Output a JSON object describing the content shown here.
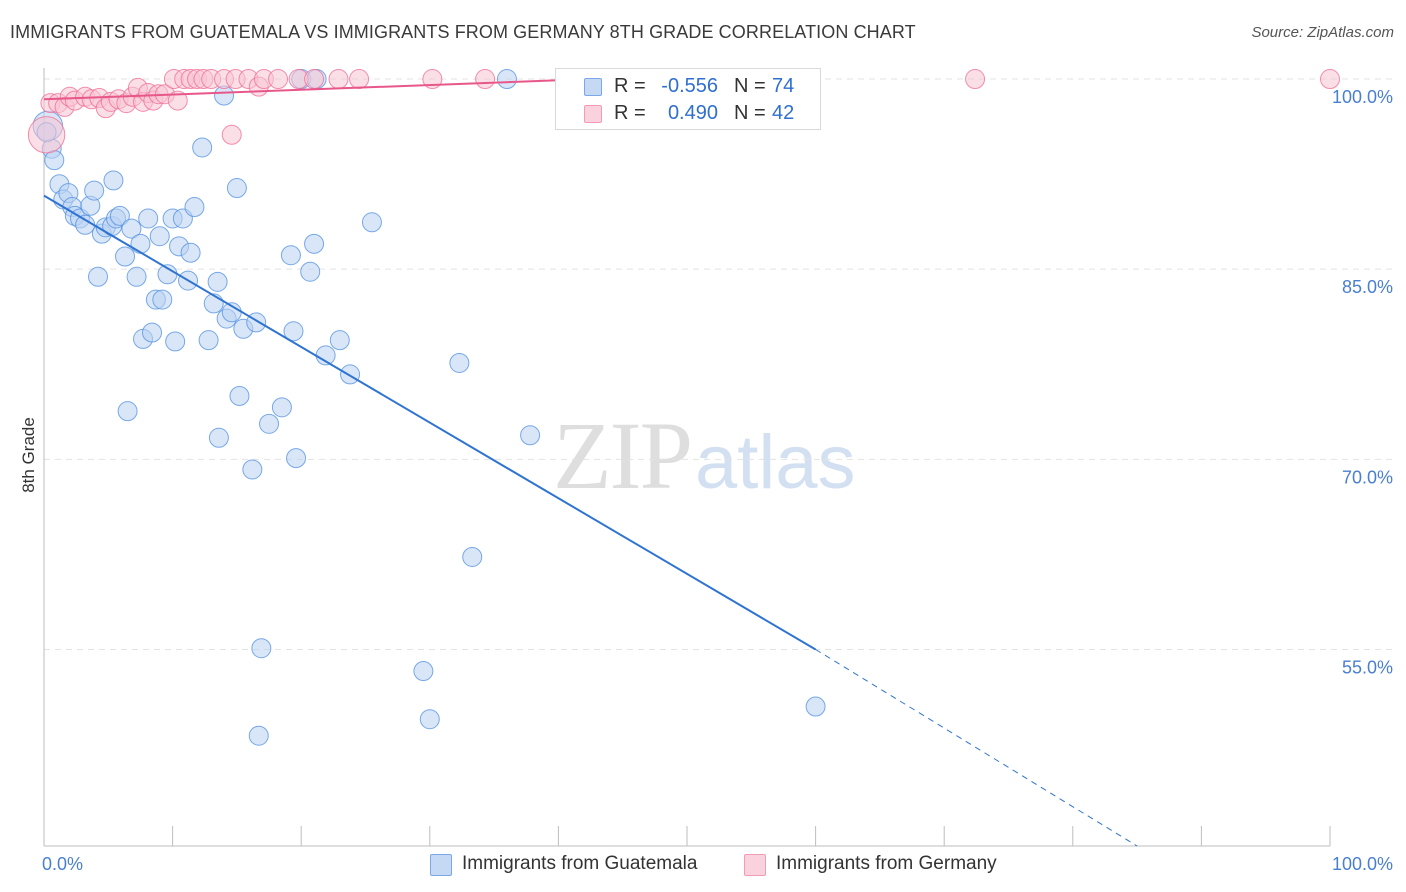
{
  "title": "IMMIGRANTS FROM GUATEMALA VS IMMIGRANTS FROM GERMANY 8TH GRADE CORRELATION CHART",
  "source": "Source: ZipAtlas.com",
  "watermark": {
    "zip": "ZIP",
    "atlas": "atlas"
  },
  "stats": [
    {
      "r_label": "R =",
      "r_value": "-0.556",
      "n_label": "N =",
      "n_value": "74",
      "color": "#7aa8e8",
      "fill": "#c5d9f5"
    },
    {
      "r_label": "R =",
      "r_value": "0.490",
      "n_label": "N =",
      "n_value": "42",
      "color": "#f29bb5",
      "fill": "#f9d2de"
    }
  ],
  "legend": [
    {
      "label": "Immigrants from Guatemala",
      "color": "#7aa8e8",
      "fill": "#c5d9f5"
    },
    {
      "label": "Immigrants from Germany",
      "color": "#f29bb5",
      "fill": "#f9d2de"
    }
  ],
  "chart_data": {
    "type": "scatter",
    "title": "IMMIGRANTS FROM GUATEMALA VS IMMIGRANTS FROM GERMANY 8TH GRADE CORRELATION CHART",
    "xlabel": "",
    "ylabel": "8th Grade",
    "xlim": [
      0,
      100
    ],
    "ylim": [
      39.5,
      101.5
    ],
    "x_tick_labels": [
      {
        "value": 0,
        "label": "0.0%"
      },
      {
        "value": 100,
        "label": "100.0%"
      }
    ],
    "y_tick_labels": [
      {
        "value": 100,
        "label": "100.0%"
      },
      {
        "value": 85,
        "label": "85.0%"
      },
      {
        "value": 70,
        "label": "70.0%"
      },
      {
        "value": 55,
        "label": "55.0%"
      }
    ],
    "grid": true,
    "series": [
      {
        "name": "Immigrants from Guatemala",
        "color": "#4f8fe0",
        "fill": "#b9d1f3",
        "trend": {
          "x0": 0,
          "y0": 90.8,
          "x1": 60,
          "y1": 55.0,
          "dash_to_x": 85,
          "dash_to_y": 39.5
        },
        "points": [
          [
            0.3,
            96.3,
            16
          ],
          [
            0.6,
            94.5,
            10
          ],
          [
            0.8,
            93.6,
            10
          ],
          [
            1.2,
            91.7,
            10
          ],
          [
            1.5,
            90.5,
            10
          ],
          [
            1.9,
            91.0,
            10
          ],
          [
            2.2,
            89.9,
            10
          ],
          [
            2.4,
            89.2,
            10
          ],
          [
            2.8,
            89.0,
            10
          ],
          [
            3.2,
            88.5,
            10
          ],
          [
            3.6,
            90.0,
            10
          ],
          [
            3.9,
            91.2,
            10
          ],
          [
            4.2,
            84.4,
            10
          ],
          [
            4.5,
            87.8,
            10
          ],
          [
            4.8,
            88.3,
            10
          ],
          [
            5.3,
            88.4,
            10
          ],
          [
            5.6,
            89.0,
            10
          ],
          [
            5.4,
            92.0,
            10
          ],
          [
            5.9,
            89.2,
            10
          ],
          [
            6.3,
            86.0,
            10
          ],
          [
            6.5,
            73.8,
            10
          ],
          [
            6.8,
            88.2,
            10
          ],
          [
            7.2,
            84.4,
            10
          ],
          [
            7.5,
            87.0,
            10
          ],
          [
            7.7,
            79.5,
            10
          ],
          [
            8.1,
            89.0,
            10
          ],
          [
            8.4,
            80.0,
            10
          ],
          [
            8.7,
            82.6,
            10
          ],
          [
            9.0,
            87.6,
            10
          ],
          [
            9.2,
            82.6,
            10
          ],
          [
            9.6,
            84.6,
            10
          ],
          [
            10.0,
            89.0,
            10
          ],
          [
            10.2,
            79.3,
            10
          ],
          [
            10.5,
            86.8,
            10
          ],
          [
            10.8,
            89.0,
            10
          ],
          [
            11.2,
            84.1,
            10
          ],
          [
            11.4,
            86.3,
            10
          ],
          [
            11.7,
            89.9,
            10
          ],
          [
            12.3,
            94.6,
            10
          ],
          [
            12.8,
            79.4,
            10
          ],
          [
            13.2,
            82.3,
            10
          ],
          [
            13.5,
            84.0,
            10
          ],
          [
            13.6,
            71.7,
            10
          ],
          [
            14.0,
            98.7,
            10
          ],
          [
            14.2,
            81.1,
            10
          ],
          [
            14.6,
            81.6,
            10
          ],
          [
            15.0,
            91.4,
            10
          ],
          [
            15.2,
            75.0,
            10
          ],
          [
            15.5,
            80.3,
            10
          ],
          [
            16.2,
            69.2,
            10
          ],
          [
            16.5,
            80.8,
            10
          ],
          [
            16.9,
            55.1,
            10
          ],
          [
            16.7,
            48.2,
            10
          ],
          [
            17.5,
            72.8,
            10
          ],
          [
            18.5,
            74.1,
            10
          ],
          [
            19.2,
            86.1,
            10
          ],
          [
            19.4,
            80.1,
            10
          ],
          [
            19.6,
            70.1,
            10
          ],
          [
            20.0,
            100.0,
            10
          ],
          [
            20.7,
            84.8,
            10
          ],
          [
            21.0,
            87.0,
            10
          ],
          [
            21.2,
            100.0,
            10
          ],
          [
            21.9,
            78.2,
            10
          ],
          [
            23.0,
            79.4,
            10
          ],
          [
            23.8,
            76.7,
            10
          ],
          [
            25.5,
            88.7,
            10
          ],
          [
            29.5,
            53.3,
            10
          ],
          [
            30.0,
            49.5,
            10
          ],
          [
            32.3,
            77.6,
            10
          ],
          [
            33.3,
            62.3,
            10
          ],
          [
            36.0,
            100.0,
            10
          ],
          [
            37.8,
            71.9,
            10
          ],
          [
            60.0,
            50.5,
            10
          ],
          [
            0.2,
            95.8,
            10
          ]
        ]
      },
      {
        "name": "Immigrants from Germany",
        "color": "#f06a93",
        "fill": "#f7c4d4",
        "trend": {
          "x0": 0,
          "y0": 98.4,
          "x1": 48,
          "y1": 100.2
        },
        "points": [
          [
            0.2,
            95.6,
            20
          ],
          [
            0.5,
            98.1,
            10
          ],
          [
            1.1,
            98.1,
            10
          ],
          [
            1.6,
            97.8,
            10
          ],
          [
            2.0,
            98.6,
            10
          ],
          [
            2.4,
            98.3,
            10
          ],
          [
            3.2,
            98.6,
            10
          ],
          [
            3.7,
            98.4,
            10
          ],
          [
            4.3,
            98.5,
            10
          ],
          [
            4.8,
            97.7,
            10
          ],
          [
            5.2,
            98.2,
            10
          ],
          [
            5.8,
            98.4,
            10
          ],
          [
            6.4,
            98.1,
            10
          ],
          [
            6.9,
            98.6,
            10
          ],
          [
            7.3,
            99.3,
            10
          ],
          [
            7.7,
            98.2,
            10
          ],
          [
            8.1,
            98.9,
            10
          ],
          [
            8.5,
            98.3,
            10
          ],
          [
            8.9,
            98.8,
            10
          ],
          [
            9.4,
            98.8,
            10
          ],
          [
            10.1,
            100.0,
            10
          ],
          [
            10.4,
            98.3,
            10
          ],
          [
            10.9,
            100.0,
            10
          ],
          [
            11.4,
            100.0,
            10
          ],
          [
            11.9,
            100.0,
            10
          ],
          [
            12.4,
            100.0,
            10
          ],
          [
            13.0,
            100.0,
            10
          ],
          [
            14.0,
            100.0,
            10
          ],
          [
            14.6,
            95.6,
            10
          ],
          [
            14.9,
            100.0,
            10
          ],
          [
            15.9,
            100.0,
            10
          ],
          [
            16.7,
            99.4,
            10
          ],
          [
            17.1,
            100.0,
            10
          ],
          [
            18.2,
            100.0,
            10
          ],
          [
            19.8,
            100.0,
            10
          ],
          [
            21.0,
            100.0,
            10
          ],
          [
            22.9,
            100.0,
            10
          ],
          [
            24.5,
            100.0,
            10
          ],
          [
            30.2,
            100.0,
            10
          ],
          [
            34.3,
            100.0,
            10
          ],
          [
            72.4,
            100.0,
            10
          ],
          [
            100.0,
            100.0,
            10
          ]
        ]
      }
    ]
  }
}
